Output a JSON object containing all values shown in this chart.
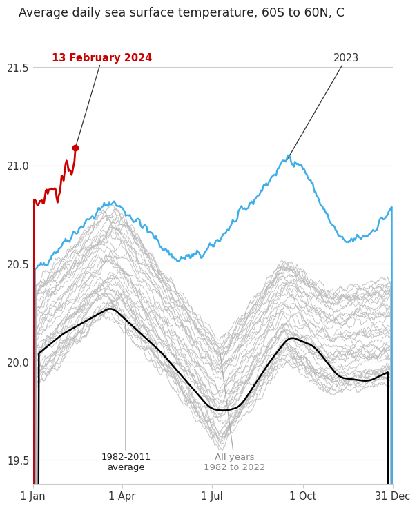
{
  "title": "Average daily sea surface temperature, 60S to 60N, C",
  "title_fontsize": 12.5,
  "yticks": [
    19.5,
    20.0,
    20.5,
    21.0,
    21.5
  ],
  "xtick_labels": [
    "1 Jan",
    "1 Apr",
    "1 Jul",
    "1 Oct",
    "31 Dec"
  ],
  "xtick_days": [
    1,
    91,
    182,
    274,
    365
  ],
  "ylim": [
    19.38,
    21.68
  ],
  "xlim": [
    1,
    365
  ],
  "bg_color": "#ffffff",
  "grid_color": "#cccccc",
  "line_2023_color": "#3daee9",
  "line_2024_color": "#cc0000",
  "line_avg_color": "#000000",
  "line_gray_color": "#bbbbbb",
  "annotation_2024_label": "13 February 2024",
  "annotation_2023_label": "2023",
  "annotation_avg_label": "1982-2011\naverage",
  "annotation_allyears_label": "All years\n1982 to 2022",
  "dot_day_2024": 44,
  "dot_val_2024": 21.09
}
